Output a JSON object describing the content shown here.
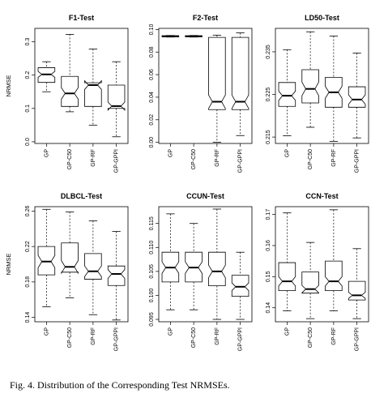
{
  "caption": "Fig. 4.  Distribution of the Corresponding Test NRMSEs.",
  "chart_data": [
    {
      "type": "boxplot",
      "title": "F1-Test",
      "ylabel": "NRMSE",
      "ylim": [
        -0.005,
        0.34
      ],
      "yticks": [
        0.0,
        0.1,
        0.2,
        0.3
      ],
      "categories": [
        "GP",
        "GP-C50",
        "GP-RF",
        "GP-GPPI"
      ],
      "boxes": [
        {
          "min": 0.15,
          "q1": 0.178,
          "median": 0.202,
          "q3": 0.222,
          "max": 0.24,
          "notch": [
            0.193,
            0.211
          ]
        },
        {
          "min": 0.09,
          "q1": 0.106,
          "median": 0.145,
          "q3": 0.196,
          "max": 0.322,
          "notch": [
            0.128,
            0.162
          ]
        },
        {
          "min": 0.05,
          "q1": 0.106,
          "median": 0.17,
          "q3": 0.177,
          "max": 0.278,
          "notch": [
            0.157,
            0.183
          ]
        },
        {
          "min": 0.015,
          "q1": 0.1,
          "median": 0.107,
          "q3": 0.17,
          "max": 0.24,
          "notch": [
            0.095,
            0.119
          ]
        }
      ]
    },
    {
      "type": "boxplot",
      "title": "F2-Test",
      "ylabel": "",
      "ylim": [
        -0.001,
        0.101
      ],
      "yticks": [
        0.0,
        0.02,
        0.04,
        0.06,
        0.08,
        0.1
      ],
      "categories": [
        "GP",
        "GP-C50",
        "GP-RF",
        "GP-GPPI"
      ],
      "boxes": [
        {
          "min": 0.0933,
          "q1": 0.0935,
          "median": 0.094,
          "q3": 0.0945,
          "max": 0.0947,
          "notch": [
            0.0937,
            0.0943
          ]
        },
        {
          "min": 0.0933,
          "q1": 0.0935,
          "median": 0.094,
          "q3": 0.0945,
          "max": 0.0947,
          "notch": [
            0.0937,
            0.0943
          ]
        },
        {
          "min": 0.0,
          "q1": 0.029,
          "median": 0.036,
          "q3": 0.093,
          "max": 0.095,
          "notch": [
            0.03,
            0.042
          ]
        },
        {
          "min": 0.006,
          "q1": 0.029,
          "median": 0.036,
          "q3": 0.093,
          "max": 0.097,
          "notch": [
            0.03,
            0.042
          ]
        }
      ]
    },
    {
      "type": "boxplot",
      "title": "LD50-Test",
      "ylabel": "",
      "ylim": [
        0.2135,
        0.2405
      ],
      "yticks": [
        0.215,
        0.225,
        0.235
      ],
      "categories": [
        "GP",
        "GP-C50",
        "GP-RF",
        "GP-GPPI"
      ],
      "boxes": [
        {
          "min": 0.2153,
          "q1": 0.2222,
          "median": 0.2247,
          "q3": 0.2278,
          "max": 0.2355,
          "notch": [
            0.2236,
            0.2258
          ]
        },
        {
          "min": 0.2173,
          "q1": 0.223,
          "median": 0.2263,
          "q3": 0.2308,
          "max": 0.2397,
          "notch": [
            0.2247,
            0.2279
          ]
        },
        {
          "min": 0.214,
          "q1": 0.222,
          "median": 0.2255,
          "q3": 0.229,
          "max": 0.2387,
          "notch": [
            0.2241,
            0.2269
          ]
        },
        {
          "min": 0.2148,
          "q1": 0.222,
          "median": 0.2238,
          "q3": 0.2268,
          "max": 0.2347,
          "notch": [
            0.2227,
            0.2249
          ]
        }
      ]
    },
    {
      "type": "boxplot",
      "title": "DLBCL-Test",
      "ylabel": "NRMSE",
      "ylim": [
        0.135,
        0.265
      ],
      "yticks": [
        0.14,
        0.18,
        0.22,
        0.26
      ],
      "categories": [
        "GP",
        "GP-C50",
        "GP-RF",
        "GP-GPPI"
      ],
      "boxes": [
        {
          "min": 0.152,
          "q1": 0.188,
          "median": 0.203,
          "q3": 0.22,
          "max": 0.262,
          "notch": [
            0.196,
            0.21
          ]
        },
        {
          "min": 0.162,
          "q1": 0.191,
          "median": 0.197,
          "q3": 0.224,
          "max": 0.259,
          "notch": [
            0.19,
            0.204
          ]
        },
        {
          "min": 0.143,
          "q1": 0.183,
          "median": 0.192,
          "q3": 0.212,
          "max": 0.249,
          "notch": [
            0.186,
            0.198
          ]
        },
        {
          "min": 0.137,
          "q1": 0.176,
          "median": 0.189,
          "q3": 0.198,
          "max": 0.237,
          "notch": [
            0.184,
            0.194
          ]
        }
      ]
    },
    {
      "type": "boxplot",
      "title": "CCUN-Test",
      "ylabel": "",
      "ylim": [
        0.0945,
        0.1185
      ],
      "yticks": [
        0.095,
        0.1,
        0.105,
        0.11,
        0.115
      ],
      "categories": [
        "GP",
        "GP-C50",
        "GP-RF",
        "GP-GPPI"
      ],
      "boxes": [
        {
          "min": 0.097,
          "q1": 0.1028,
          "median": 0.1058,
          "q3": 0.109,
          "max": 0.117,
          "notch": [
            0.1046,
            0.107
          ]
        },
        {
          "min": 0.097,
          "q1": 0.1028,
          "median": 0.1058,
          "q3": 0.109,
          "max": 0.115,
          "notch": [
            0.1046,
            0.107
          ]
        },
        {
          "min": 0.095,
          "q1": 0.102,
          "median": 0.105,
          "q3": 0.109,
          "max": 0.118,
          "notch": [
            0.1037,
            0.1063
          ]
        },
        {
          "min": 0.095,
          "q1": 0.0998,
          "median": 0.1018,
          "q3": 0.1042,
          "max": 0.109,
          "notch": [
            0.101,
            0.1026
          ]
        }
      ]
    },
    {
      "type": "boxplot",
      "title": "CCN-Test",
      "ylabel": "",
      "ylim": [
        0.1355,
        0.1725
      ],
      "yticks": [
        0.14,
        0.15,
        0.16,
        0.17
      ],
      "categories": [
        "GP",
        "GP-C50",
        "GP-RF",
        "GP-GPPI"
      ],
      "boxes": [
        {
          "min": 0.139,
          "q1": 0.1455,
          "median": 0.1485,
          "q3": 0.1545,
          "max": 0.1705,
          "notch": [
            0.147,
            0.15
          ]
        },
        {
          "min": 0.1365,
          "q1": 0.1447,
          "median": 0.146,
          "q3": 0.1515,
          "max": 0.161,
          "notch": [
            0.1448,
            0.1472
          ]
        },
        {
          "min": 0.139,
          "q1": 0.1455,
          "median": 0.1485,
          "q3": 0.155,
          "max": 0.1715,
          "notch": [
            0.147,
            0.15
          ]
        },
        {
          "min": 0.1365,
          "q1": 0.1425,
          "median": 0.144,
          "q3": 0.1485,
          "max": 0.159,
          "notch": [
            0.143,
            0.145
          ]
        }
      ]
    }
  ]
}
